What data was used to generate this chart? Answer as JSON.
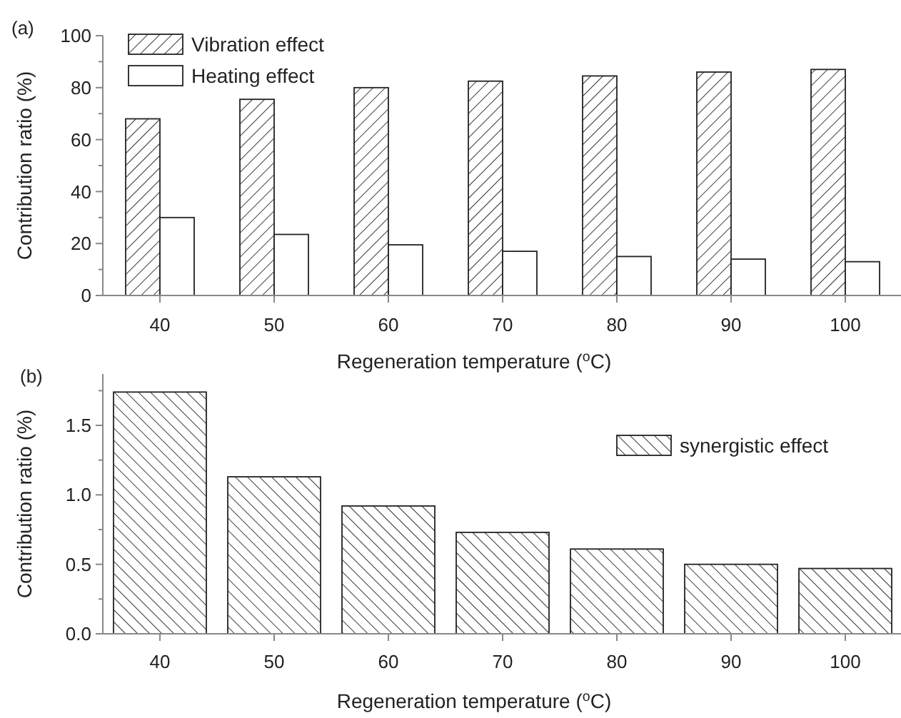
{
  "chart_data": [
    {
      "type": "bar",
      "title": "(a)",
      "categories": [
        "40",
        "50",
        "60",
        "70",
        "80",
        "90",
        "100"
      ],
      "xlabel": "Regeneration temperature ($^{o}$C)",
      "ylabel": "Contribution ratio (%)",
      "ylim": [
        0,
        100
      ],
      "yticks": [
        0,
        20,
        40,
        60,
        80,
        100
      ],
      "legend": "top left",
      "grid": false,
      "series": [
        {
          "name": "Vibration effect",
          "color": "#222222",
          "values": [
            68,
            75.5,
            80,
            82.5,
            84.5,
            86,
            87
          ]
        },
        {
          "name": "Heating effect",
          "color": "#ffffff",
          "values": [
            30,
            23.5,
            19.5,
            17,
            15,
            14,
            13
          ]
        }
      ]
    },
    {
      "type": "bar",
      "title": "(b)",
      "categories": [
        "40",
        "50",
        "60",
        "70",
        "80",
        "90",
        "100"
      ],
      "xlabel": "Regeneration temperature ($^{o}$C)",
      "ylabel": "Contribution ratio (%)",
      "ylim": [
        0,
        1.87
      ],
      "yticks": [
        {
          "value": 0,
          "label": "0.0"
        },
        {
          "value": 0.5,
          "label": "0.5"
        },
        {
          "value": 1,
          "label": "1.0"
        },
        {
          "value": 1.5,
          "label": "1.5"
        }
      ],
      "legend": "right",
      "grid": false,
      "series": [
        {
          "name": "synergistic effect",
          "color": "#222222",
          "values": [
            1.74,
            1.13,
            0.92,
            0.73,
            0.61,
            0.5,
            0.47
          ]
        }
      ]
    }
  ]
}
